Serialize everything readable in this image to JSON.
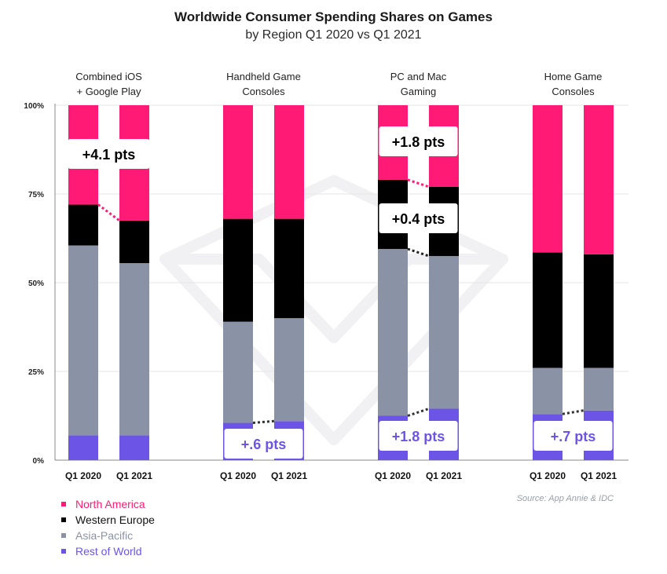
{
  "chart_data": {
    "type": "bar",
    "stacked": true,
    "percent": true,
    "title": "Worldwide Consumer Spending Shares on Games",
    "subtitle": "by Region Q1 2020 vs Q1 2021",
    "y_ticks": [
      "0%",
      "25%",
      "50%",
      "75%",
      "100%"
    ],
    "ylim": [
      0,
      100
    ],
    "series_order": [
      "Rest of World",
      "Asia-Pacific",
      "Western Europe",
      "North America"
    ],
    "colors": {
      "North America": "#ff1a75",
      "Western Europe": "#000000",
      "Asia-Pacific": "#8a93a6",
      "Rest of World": "#6c55e6"
    },
    "groups": [
      {
        "label": "Combined iOS\n+ Google Play",
        "bars": [
          {
            "label": "Q1 2020",
            "values": {
              "Rest of World": 7.0,
              "Asia-Pacific": 53.5,
              "Western Europe": 11.5,
              "North America": 28.0
            }
          },
          {
            "label": "Q1 2021",
            "values": {
              "Rest of World": 7.0,
              "Asia-Pacific": 48.5,
              "Western Europe": 12.0,
              "North America": 32.5
            }
          }
        ],
        "annotations": [
          {
            "text": "+4.1 pts",
            "color": "#000000"
          }
        ]
      },
      {
        "label": "Handheld Game\nConsoles",
        "bars": [
          {
            "label": "Q1 2020",
            "values": {
              "Rest of World": 10.5,
              "Asia-Pacific": 28.5,
              "Western Europe": 29.0,
              "North America": 32.0
            }
          },
          {
            "label": "Q1 2021",
            "values": {
              "Rest of World": 11.0,
              "Asia-Pacific": 29.0,
              "Western Europe": 28.0,
              "North America": 32.0
            }
          }
        ],
        "annotations": [
          {
            "text": "+.6 pts",
            "color": "#6c55e6"
          }
        ]
      },
      {
        "label": "PC and Mac\nGaming",
        "bars": [
          {
            "label": "Q1 2020",
            "values": {
              "Rest of World": 12.5,
              "Asia-Pacific": 47.0,
              "Western Europe": 19.5,
              "North America": 21.0
            }
          },
          {
            "label": "Q1 2021",
            "values": {
              "Rest of World": 14.5,
              "Asia-Pacific": 43.0,
              "Western Europe": 19.5,
              "North America": 23.0
            }
          }
        ],
        "annotations": [
          {
            "text": "+1.8 pts",
            "color": "#000000"
          },
          {
            "text": "+0.4 pts",
            "color": "#000000"
          },
          {
            "text": "+1.8 pts",
            "color": "#6c55e6"
          }
        ]
      },
      {
        "label": "Home Game\nConsoles",
        "bars": [
          {
            "label": "Q1 2020",
            "values": {
              "Rest of World": 13.0,
              "Asia-Pacific": 13.0,
              "Western Europe": 32.5,
              "North America": 41.5
            }
          },
          {
            "label": "Q1 2021",
            "values": {
              "Rest of World": 14.0,
              "Asia-Pacific": 12.0,
              "Western Europe": 32.0,
              "North America": 42.0
            }
          }
        ],
        "annotations": [
          {
            "text": "+.7 pts",
            "color": "#6c55e6"
          }
        ]
      }
    ]
  },
  "legend": [
    {
      "name": "North America",
      "color": "#ff1a75",
      "text_color": "#ff1a75"
    },
    {
      "name": "Western Europe",
      "color": "#000000",
      "text_color": "#111111"
    },
    {
      "name": "Asia-Pacific",
      "color": "#8a93a6",
      "text_color": "#8a93a6"
    },
    {
      "name": "Rest of World",
      "color": "#6c55e6",
      "text_color": "#6c55e6"
    }
  ],
  "source": "Source: App Annie & IDC"
}
